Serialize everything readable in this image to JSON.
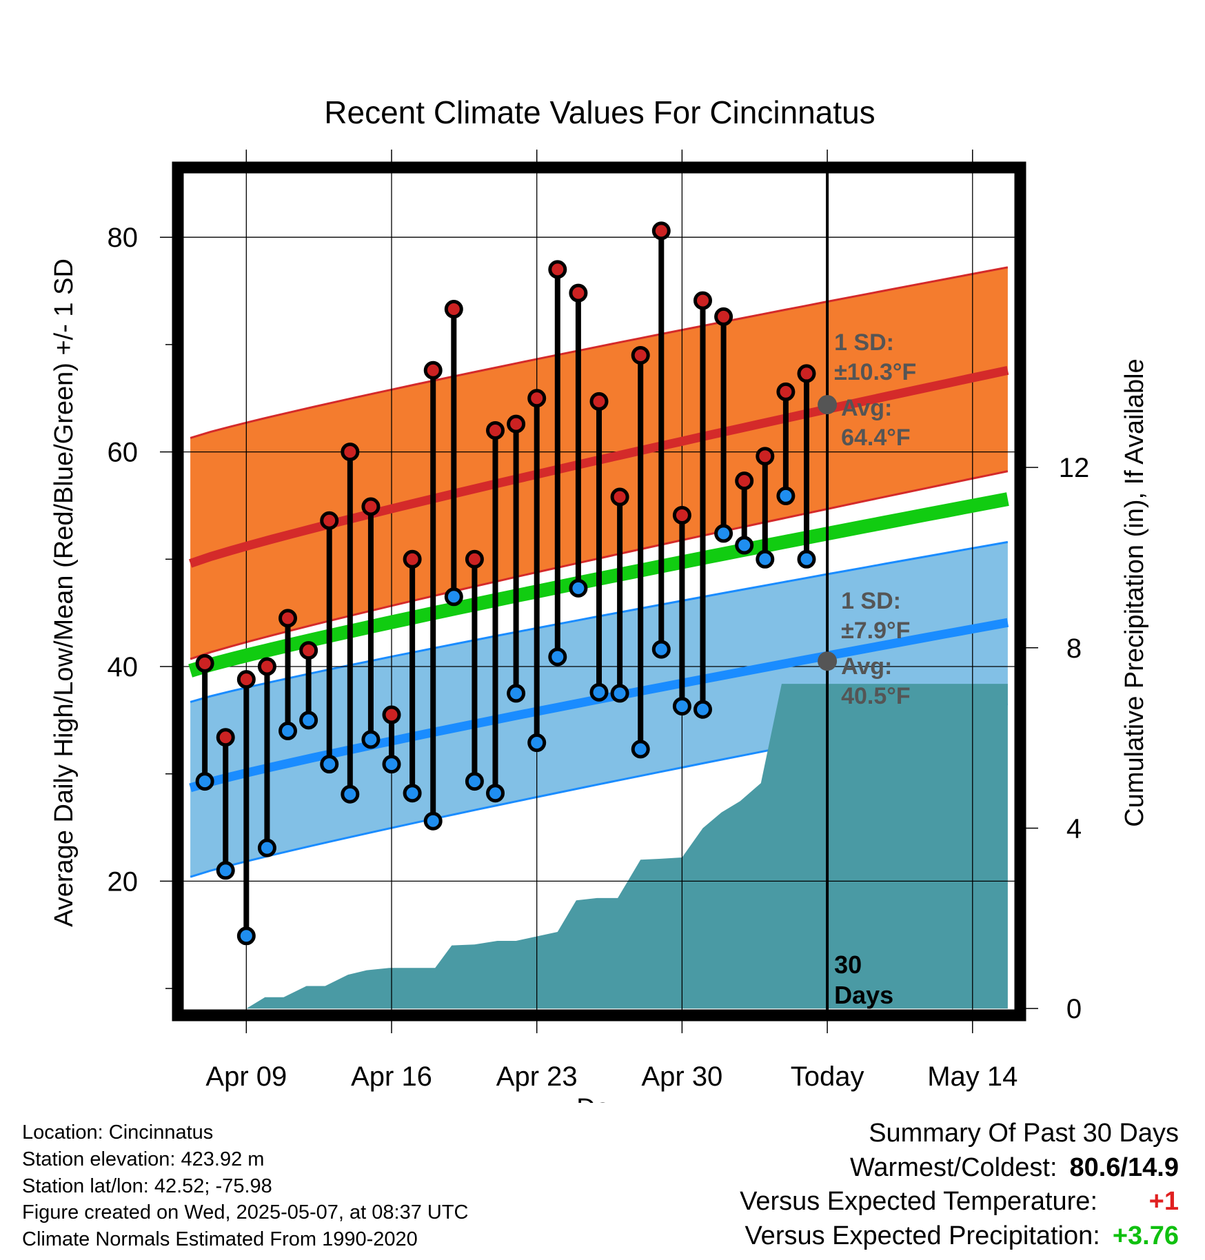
{
  "chart_data": {
    "type": "line",
    "title": "Recent Climate Values For Cincinnatus",
    "xlabel": "Day",
    "ylabel_left": "Average Daily High/Low/Mean (Red/Blue/Green) +/- 1 SD",
    "ylabel_right": "Cumulative Precipitation (in), If Available",
    "x_ticks": [
      {
        "day": 0,
        "label": "Apr 09"
      },
      {
        "day": 7,
        "label": "Apr 16"
      },
      {
        "day": 14,
        "label": "Apr 23"
      },
      {
        "day": 21,
        "label": "Apr 30"
      },
      {
        "day": 28,
        "label": "Today"
      },
      {
        "day": 35,
        "label": "May 14"
      }
    ],
    "xlim": [
      -3.3,
      37.3
    ],
    "ylim_left": [
      7.5,
      86.5
    ],
    "yticks_left": [
      20,
      40,
      60,
      80
    ],
    "ylim_right": [
      -0.15,
      18.65
    ],
    "yticks_right": [
      0,
      4,
      8,
      12
    ],
    "grid": true,
    "today_day": 28,
    "normals": {
      "days": [
        -2.7,
        36.7
      ],
      "high_avg": [
        49.6,
        67.6
      ],
      "high_upper": [
        61.3,
        77.2
      ],
      "high_lower": [
        40.7,
        58.2
      ],
      "mean_avg": [
        39.6,
        55.6
      ],
      "low_avg": [
        28.7,
        44.1
      ],
      "low_upper": [
        36.7,
        51.6
      ],
      "low_lower": [
        20.4,
        36.5
      ]
    },
    "daily": {
      "days": [
        -2,
        -1,
        0,
        1,
        2,
        3,
        4,
        5,
        6,
        7,
        8,
        9,
        10,
        11,
        12,
        13,
        14,
        15,
        16,
        17,
        18,
        19,
        20,
        21,
        22,
        23,
        24,
        25,
        26,
        27
      ],
      "highs": [
        40.3,
        33.4,
        38.8,
        40.0,
        44.5,
        41.5,
        53.6,
        60.0,
        54.9,
        35.5,
        50.0,
        67.6,
        73.3,
        50.0,
        62.0,
        62.6,
        65.0,
        77.0,
        74.8,
        64.7,
        55.8,
        69.0,
        80.6,
        54.1,
        74.1,
        72.6,
        57.3,
        59.6,
        65.6,
        67.3
      ],
      "lows": [
        29.3,
        21.0,
        14.9,
        23.1,
        34.0,
        35.0,
        30.9,
        28.1,
        33.2,
        30.9,
        28.2,
        25.6,
        46.5,
        29.3,
        28.2,
        37.5,
        32.9,
        40.9,
        47.3,
        37.6,
        37.5,
        32.3,
        41.6,
        36.3,
        36.0,
        52.4,
        51.3,
        50.0,
        55.9,
        50.0
      ]
    },
    "precip": {
      "days": [
        0,
        0.9,
        1.8,
        2.9,
        3.8,
        4.9,
        5.8,
        6.9,
        7.9,
        9.1,
        9.9,
        11.0,
        12.1,
        13.0,
        14.0,
        15.0,
        15.9,
        16.9,
        17.9,
        19.0,
        19.9,
        21.0,
        22.0,
        22.9,
        23.8,
        24.8,
        25.8,
        26.6,
        28.0,
        36.7
      ],
      "values": [
        0,
        0.25,
        0.25,
        0.5,
        0.5,
        0.75,
        0.85,
        0.9,
        0.9,
        0.9,
        1.4,
        1.42,
        1.5,
        1.5,
        1.6,
        1.7,
        2.4,
        2.45,
        2.45,
        3.3,
        3.32,
        3.35,
        4.0,
        4.35,
        4.6,
        5.0,
        7.2,
        7.2,
        7.2,
        7.2
      ]
    },
    "annotations": {
      "high_sd": [
        "1 SD:",
        "±10.3°F"
      ],
      "high_avg": [
        "Avg:",
        "64.4°F"
      ],
      "low_sd": [
        "1 SD:",
        "±7.9°F"
      ],
      "low_avg": [
        "Avg:",
        "40.5°F"
      ],
      "days_label": [
        "30",
        "Days"
      ],
      "high_avg_today": 64.4,
      "low_avg_today": 40.5
    },
    "colors": {
      "high_band": "#f47c2e",
      "high_line": "#d42a2a",
      "mean_line": "#11cc11",
      "low_band": "#82c0e6",
      "low_line": "#1a8cff",
      "precip": "#4a9aa4",
      "high_marker": "#cc2222",
      "low_marker": "#1f8ef0",
      "annotation": "#555555"
    }
  },
  "info": {
    "location": "Location: Cincinnatus",
    "elevation": "Station elevation: 423.92 m",
    "latlon": "Station lat/lon: 42.52; -75.98",
    "created": "Figure created on Wed, 2025-05-07, at 08:37 UTC",
    "normals": "Climate Normals Estimated From 1990-2020"
  },
  "summary": {
    "title": "Summary Of Past 30 Days",
    "warm_label": "Warmest/Coldest:",
    "warm_value": "80.6/14.9",
    "temp_label": "Versus Expected Temperature:",
    "temp_value": "+1",
    "precip_label": "Versus Expected Precipitation:",
    "precip_value": "+3.76"
  }
}
